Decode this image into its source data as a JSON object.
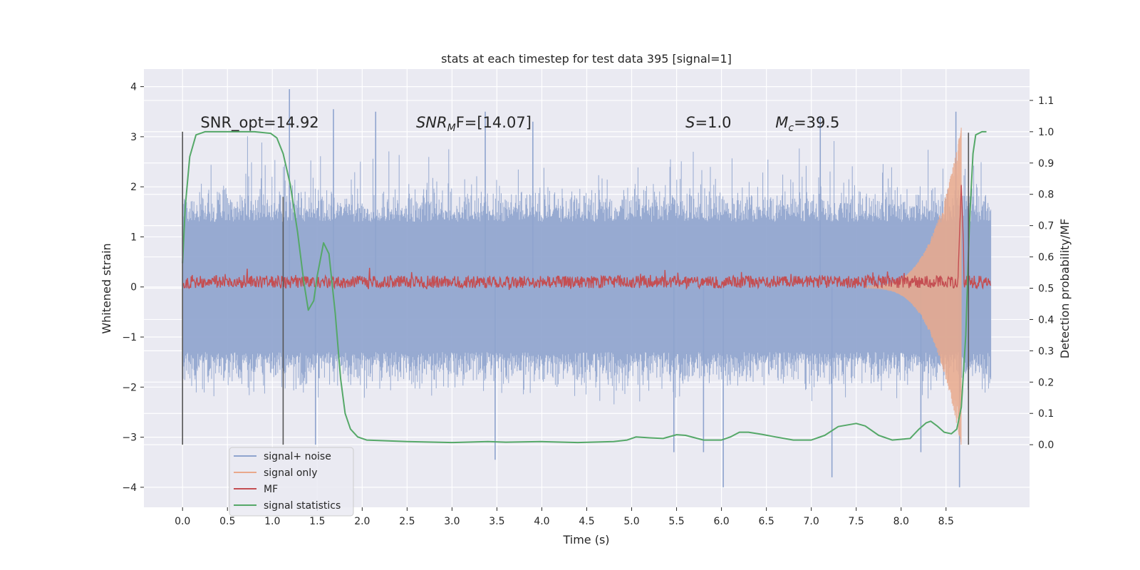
{
  "chart_data": {
    "type": "line",
    "title": "stats at each timestep for test data 395 [signal=1]",
    "xlabel": "Time (s)",
    "ylabel": "Whitened strain",
    "ylabel_right": "Detection probability/MF",
    "xlim": [
      -0.43,
      9.43
    ],
    "ylim": [
      -4.4,
      4.35
    ],
    "ylim_right": [
      -0.2,
      1.2
    ],
    "x_ticks": [
      0.0,
      0.5,
      1.0,
      1.5,
      2.0,
      2.5,
      3.0,
      3.5,
      4.0,
      4.5,
      5.0,
      5.5,
      6.0,
      6.5,
      7.0,
      7.5,
      8.0,
      8.5
    ],
    "x_tick_labels": [
      "0.0",
      "0.5",
      "1.0",
      "1.5",
      "2.0",
      "2.5",
      "3.0",
      "3.5",
      "4.0",
      "4.5",
      "5.0",
      "5.5",
      "6.0",
      "6.5",
      "7.0",
      "7.5",
      "8.0",
      "8.5"
    ],
    "y_ticks": [
      4,
      3,
      2,
      1,
      0,
      -1,
      -2,
      -3,
      -4
    ],
    "y_tick_labels": [
      "4",
      "3",
      "2",
      "1",
      "0",
      "−1",
      "−2",
      "−3",
      "−4"
    ],
    "y_ticks_right": [
      1.1,
      1.0,
      0.9,
      0.8,
      0.7,
      0.6,
      0.5,
      0.4,
      0.3,
      0.2,
      0.1,
      0.0
    ],
    "y_tick_labels_right": [
      "1.1",
      "1.0",
      "0.9",
      "0.8",
      "0.7",
      "0.6",
      "0.5",
      "0.4",
      "0.3",
      "0.2",
      "0.1",
      "0.0"
    ],
    "grid": true,
    "legend_position": "lower-left",
    "colors": {
      "background": "#eaeaf2",
      "grid": "#ffffff",
      "noise": "#8fa4ce",
      "signal": "#e9a98c",
      "mf": "#c44e52",
      "stats": "#55a868",
      "vline": "#555555"
    },
    "annotations": [
      {
        "text": "SNR_opt=14.92",
        "x": 0.2,
        "y": 3.18
      },
      {
        "text": "SNR_M F=[14.07]",
        "x": 2.6,
        "y": 3.18,
        "base": "SNR",
        "sub": "M",
        "rest": "F=[14.07]"
      },
      {
        "text": "S=1.0",
        "x": 5.6,
        "y": 3.18,
        "base": "S",
        "rest": "=1.0"
      },
      {
        "text": "M_c=39.5",
        "x": 6.6,
        "y": 3.18,
        "base": "M",
        "sub": "c",
        "rest": "=39.5"
      }
    ],
    "vertical_markers": [
      {
        "x": 0.0,
        "y_range": [
          -3.15,
          3.1
        ]
      },
      {
        "x": 1.12,
        "y_range": [
          -3.15,
          1.8
        ]
      },
      {
        "x": 8.75,
        "y_range": [
          -3.15,
          3.08
        ]
      }
    ],
    "series": [
      {
        "name": "signal+ noise",
        "axis": "left",
        "render": "dense-noise",
        "x_range": [
          0.0,
          9.0
        ],
        "envelope_core": [
          -1.3,
          1.3
        ],
        "envelope_typical": [
          -2.2,
          2.3
        ],
        "peaks": [
          [
            1.19,
            3.95
          ],
          [
            1.68,
            3.55
          ],
          [
            2.15,
            3.5
          ],
          [
            3.37,
            3.5
          ],
          [
            3.9,
            3.3
          ],
          [
            7.1,
            3.4
          ],
          [
            8.61,
            3.5
          ],
          [
            3.48,
            -3.45
          ],
          [
            6.02,
            -4.0
          ],
          [
            7.23,
            -3.8
          ],
          [
            8.65,
            -4.0
          ],
          [
            1.48,
            -3.15
          ],
          [
            5.47,
            -3.3
          ],
          [
            5.8,
            -3.3
          ],
          [
            8.22,
            -3.3
          ]
        ]
      },
      {
        "name": "signal only",
        "axis": "left",
        "render": "chirp",
        "x_range": [
          7.6,
          8.67
        ],
        "amplitude_range": [
          0.03,
          3.2
        ]
      },
      {
        "name": "MF",
        "axis": "right",
        "render": "jitter",
        "x_range": [
          0.0,
          9.0
        ],
        "baseline": 0.52,
        "jitter": 0.02,
        "peaks": [
          [
            8.67,
            0.83
          ]
        ]
      },
      {
        "name": "signal statistics",
        "axis": "right",
        "render": "line",
        "points": [
          [
            0.0,
            0.58
          ],
          [
            0.03,
            0.76
          ],
          [
            0.08,
            0.92
          ],
          [
            0.15,
            0.99
          ],
          [
            0.25,
            1.0
          ],
          [
            0.5,
            1.0
          ],
          [
            0.8,
            1.0
          ],
          [
            0.98,
            0.995
          ],
          [
            1.05,
            0.98
          ],
          [
            1.12,
            0.93
          ],
          [
            1.2,
            0.83
          ],
          [
            1.28,
            0.68
          ],
          [
            1.35,
            0.52
          ],
          [
            1.4,
            0.43
          ],
          [
            1.46,
            0.46
          ],
          [
            1.5,
            0.54
          ],
          [
            1.57,
            0.645
          ],
          [
            1.63,
            0.61
          ],
          [
            1.7,
            0.42
          ],
          [
            1.76,
            0.21
          ],
          [
            1.81,
            0.1
          ],
          [
            1.87,
            0.05
          ],
          [
            1.95,
            0.025
          ],
          [
            2.05,
            0.015
          ],
          [
            2.5,
            0.01
          ],
          [
            3.0,
            0.007
          ],
          [
            3.4,
            0.01
          ],
          [
            3.6,
            0.008
          ],
          [
            4.0,
            0.01
          ],
          [
            4.4,
            0.007
          ],
          [
            4.8,
            0.01
          ],
          [
            4.95,
            0.015
          ],
          [
            5.05,
            0.025
          ],
          [
            5.2,
            0.022
          ],
          [
            5.35,
            0.02
          ],
          [
            5.5,
            0.032
          ],
          [
            5.6,
            0.03
          ],
          [
            5.8,
            0.015
          ],
          [
            6.0,
            0.015
          ],
          [
            6.1,
            0.025
          ],
          [
            6.2,
            0.04
          ],
          [
            6.3,
            0.04
          ],
          [
            6.45,
            0.033
          ],
          [
            6.6,
            0.025
          ],
          [
            6.8,
            0.015
          ],
          [
            7.0,
            0.015
          ],
          [
            7.15,
            0.03
          ],
          [
            7.3,
            0.058
          ],
          [
            7.5,
            0.068
          ],
          [
            7.6,
            0.06
          ],
          [
            7.75,
            0.03
          ],
          [
            7.9,
            0.015
          ],
          [
            8.1,
            0.02
          ],
          [
            8.2,
            0.05
          ],
          [
            8.28,
            0.07
          ],
          [
            8.33,
            0.075
          ],
          [
            8.4,
            0.06
          ],
          [
            8.48,
            0.04
          ],
          [
            8.56,
            0.035
          ],
          [
            8.62,
            0.05
          ],
          [
            8.67,
            0.12
          ],
          [
            8.72,
            0.35
          ],
          [
            8.76,
            0.7
          ],
          [
            8.8,
            0.93
          ],
          [
            8.83,
            0.99
          ],
          [
            8.9,
            1.0
          ],
          [
            8.95,
            1.0
          ]
        ]
      }
    ]
  }
}
